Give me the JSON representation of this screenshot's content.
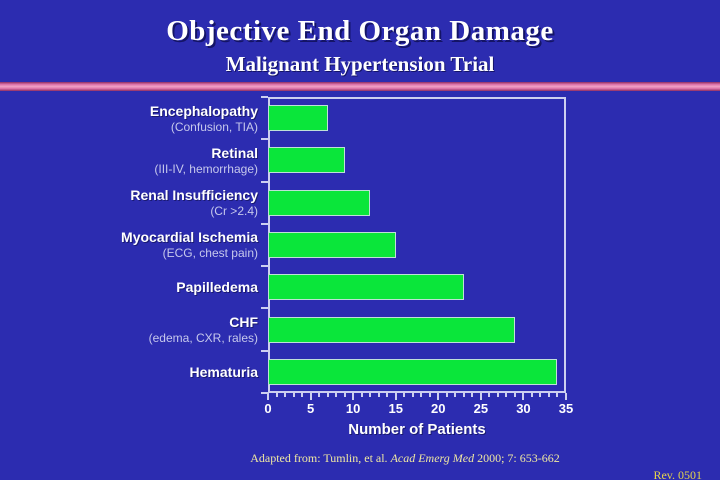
{
  "slide": {
    "title": "Objective End Organ Damage",
    "subtitle": "Malignant Hypertension Trial",
    "rev": "Rev. 0501"
  },
  "footer": {
    "prefix": "Adapted from: Tumlin, et al.  ",
    "source_italic": "Acad Emerg Med",
    "suffix": " 2000; 7:  653-662"
  },
  "chart_data": {
    "type": "bar",
    "orientation": "horizontal",
    "title": "Objective End Organ Damage — Malignant Hypertension Trial",
    "categories": [
      "Encephalopathy",
      "Retinal",
      "Renal Insufficiency",
      "Myocardial Ischemia",
      "Papilledema",
      "CHF",
      "Hematuria"
    ],
    "sublabels": [
      "(Confusion, TIA)",
      "(III-IV, hemorrhage)",
      "(Cr >2.4)",
      "(ECG, chest pain)",
      "",
      "(edema, CXR, rales)",
      ""
    ],
    "values": [
      7,
      9,
      12,
      15,
      23,
      29,
      34
    ],
    "xlabel": "Number of Patients",
    "xlim": [
      0,
      35
    ],
    "xticks": [
      0,
      5,
      10,
      15,
      20,
      25,
      30,
      35
    ],
    "minor_tick_step": 1,
    "grid": false,
    "legend": false,
    "bar_color": "#0AE63A",
    "background_color": "#2C2CB0",
    "divider_color": "#D96FA6"
  }
}
